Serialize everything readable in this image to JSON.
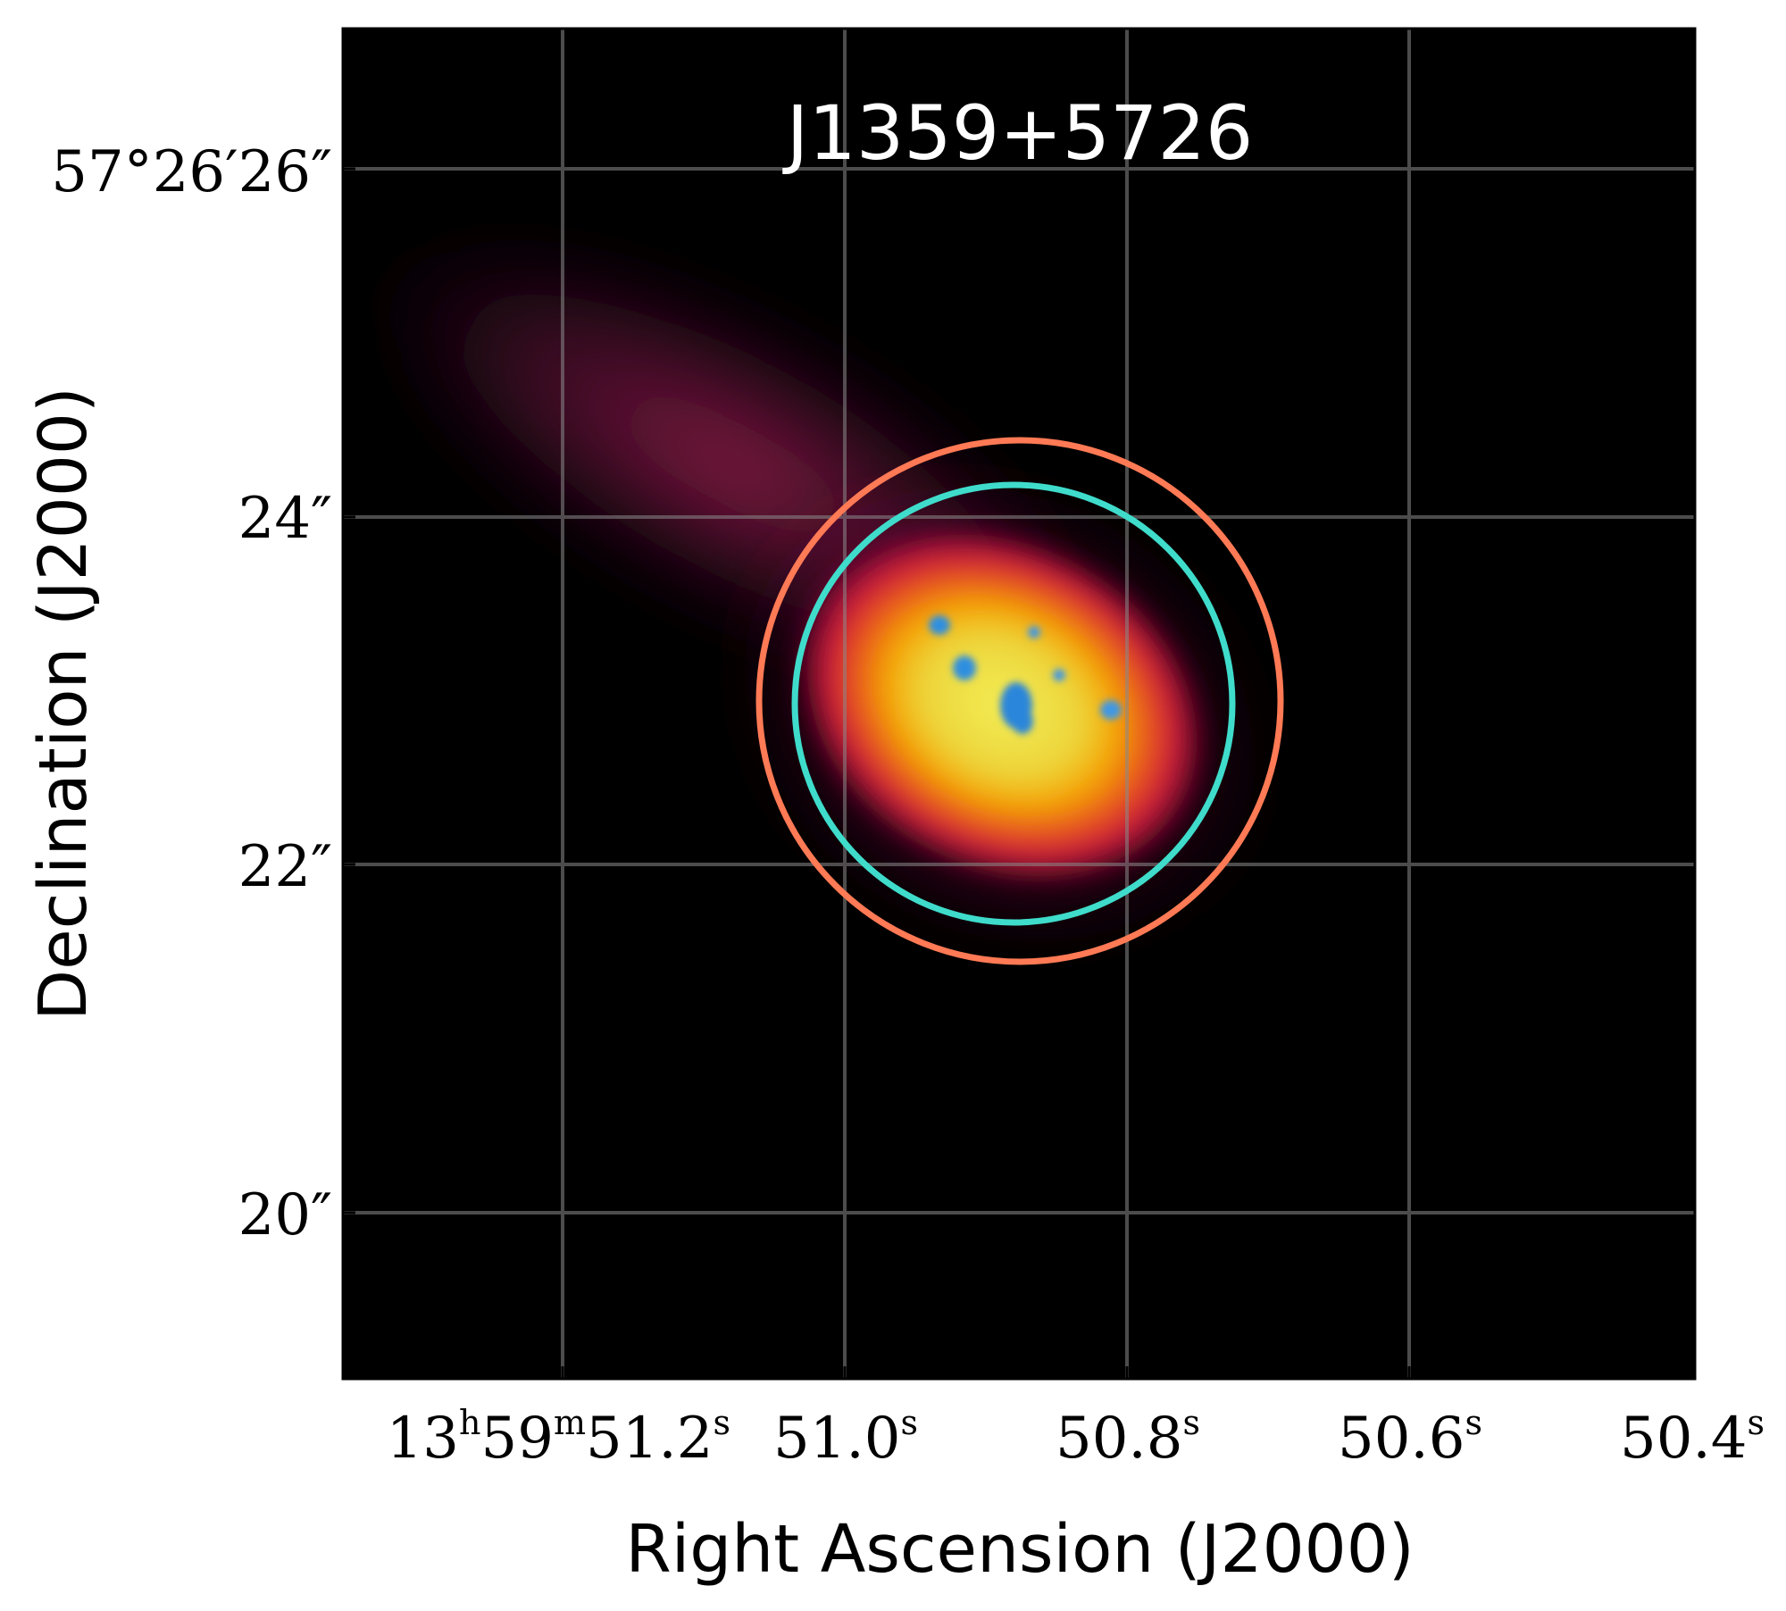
{
  "title": "J1359+5726",
  "xlabel": "Right Ascension (J2000)",
  "ylabel": "Declination (J2000)",
  "x_ticks": [
    {
      "h": "13",
      "m": "59",
      "s": "51.2"
    },
    {
      "label": "51.0"
    },
    {
      "label": "50.8"
    },
    {
      "label": "50.6"
    },
    {
      "label": "50.4"
    }
  ],
  "y_ticks": [
    {
      "label": "57°26′26″"
    },
    {
      "label": "24″"
    },
    {
      "label": "22″"
    },
    {
      "label": "20″"
    }
  ],
  "sexagesimal_units": {
    "h": "h",
    "m": "m",
    "s": "s"
  },
  "circles": [
    {
      "color": "#ff7a55",
      "role": "outer-aperture"
    },
    {
      "color": "#3fdccb",
      "role": "inner-aperture"
    }
  ],
  "colors": {
    "background": "#000000",
    "grid": "#8a8a8a",
    "core": "#f5e84a",
    "mid": "#f5a400",
    "outer": "#cc1244",
    "knots": "#2f8fe0"
  }
}
